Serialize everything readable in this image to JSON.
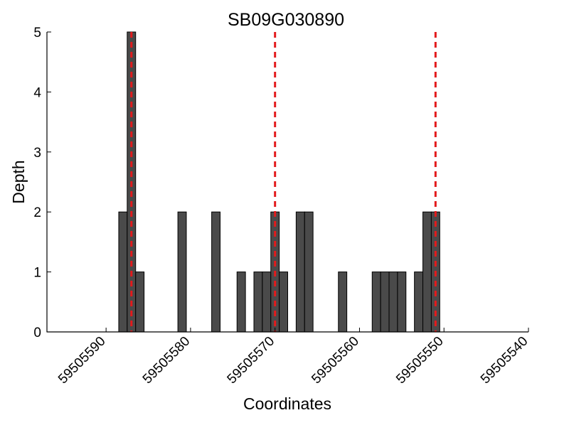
{
  "chart_data": {
    "type": "bar",
    "title": "SB09G030890",
    "xlabel": "Coordinates",
    "ylabel": "Depth",
    "xlim": [
      59505597,
      59505540
    ],
    "ylim": [
      0,
      5
    ],
    "x_reversed": true,
    "grid": false,
    "bin_width": 1,
    "x_ticks": [
      59505590,
      59505580,
      59505570,
      59505560,
      59505550,
      59505540
    ],
    "x_tick_labels": [
      "59505590",
      "59505580",
      "59505570",
      "59505560",
      "59505550",
      "59505540"
    ],
    "y_ticks": [
      0,
      1,
      2,
      3,
      4,
      5
    ],
    "y_tick_labels": [
      "0",
      "1",
      "2",
      "3",
      "4",
      "5"
    ],
    "bins": [
      {
        "x": 59505588,
        "y": 2
      },
      {
        "x": 59505587,
        "y": 5
      },
      {
        "x": 59505586,
        "y": 1
      },
      {
        "x": 59505581,
        "y": 2
      },
      {
        "x": 59505577,
        "y": 2
      },
      {
        "x": 59505574,
        "y": 1
      },
      {
        "x": 59505572,
        "y": 1
      },
      {
        "x": 59505571,
        "y": 1
      },
      {
        "x": 59505570,
        "y": 2
      },
      {
        "x": 59505569,
        "y": 1
      },
      {
        "x": 59505567,
        "y": 2
      },
      {
        "x": 59505566,
        "y": 2
      },
      {
        "x": 59505562,
        "y": 1
      },
      {
        "x": 59505558,
        "y": 1
      },
      {
        "x": 59505557,
        "y": 1
      },
      {
        "x": 59505556,
        "y": 1
      },
      {
        "x": 59505555,
        "y": 1
      },
      {
        "x": 59505553,
        "y": 1
      },
      {
        "x": 59505552,
        "y": 2
      },
      {
        "x": 59505551,
        "y": 2
      }
    ],
    "reference_lines": [
      59505587,
      59505570,
      59505551
    ],
    "colors": {
      "bar_fill": "#4a4a4a",
      "bar_edge": "#000000",
      "reference_line": "#e31a1c",
      "axis": "#000000"
    }
  }
}
